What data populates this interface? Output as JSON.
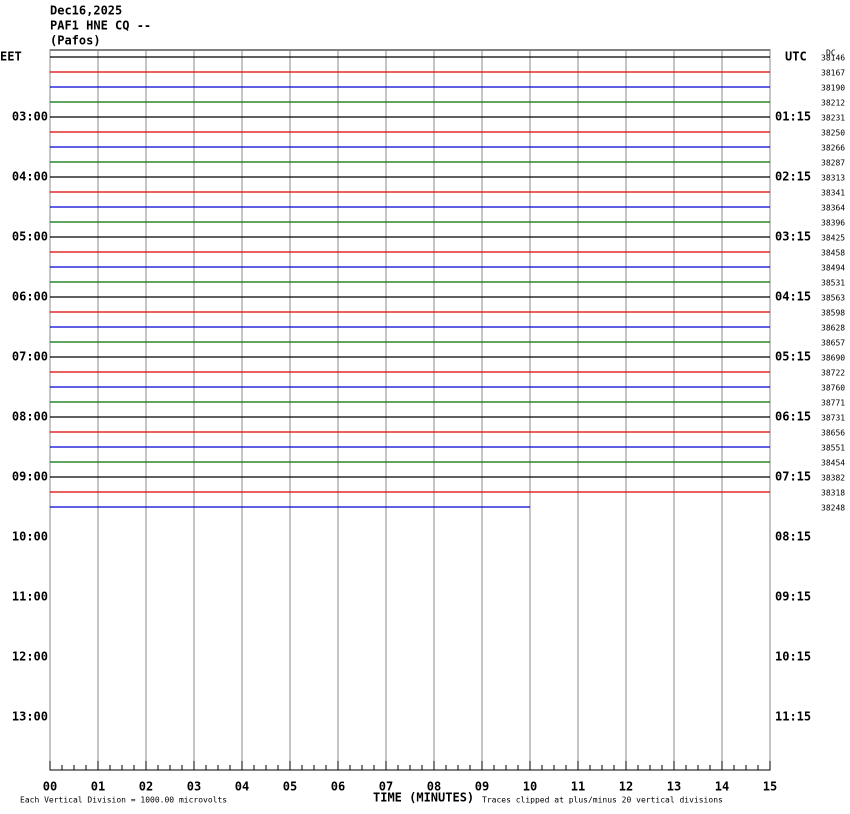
{
  "chart_data": {
    "type": "helicorder",
    "title": "Dec16,2025",
    "subtitle": "PAF1 HNE CQ --",
    "location": "(Pafos)",
    "left_axis_title": "EET",
    "right_axis_title": "UTC",
    "dc_title": "DC",
    "x_title": "TIME (MINUTES)",
    "scale_note": "Each Vertical Division = 1000.00 microvolts",
    "clip_note": "Traces clipped at plus/minus 20 vertical divisions",
    "xlim": [
      0,
      15
    ],
    "xticks": [
      {
        "value": 0,
        "label": "00"
      },
      {
        "value": 1,
        "label": "01"
      },
      {
        "value": 2,
        "label": "02"
      },
      {
        "value": 3,
        "label": "03"
      },
      {
        "value": 4,
        "label": "04"
      },
      {
        "value": 5,
        "label": "05"
      },
      {
        "value": 6,
        "label": "06"
      },
      {
        "value": 7,
        "label": "07"
      },
      {
        "value": 8,
        "label": "08"
      },
      {
        "value": 9,
        "label": "09"
      },
      {
        "value": 10,
        "label": "10"
      },
      {
        "value": 11,
        "label": "11"
      },
      {
        "value": 12,
        "label": "12"
      },
      {
        "value": 13,
        "label": "13"
      },
      {
        "value": 14,
        "label": "14"
      },
      {
        "value": 15,
        "label": "15"
      }
    ],
    "left_labels": [
      "03:00",
      "04:00",
      "05:00",
      "06:00",
      "07:00",
      "08:00",
      "09:00",
      "10:00",
      "11:00",
      "12:00",
      "13:00"
    ],
    "right_labels": [
      "01:15",
      "02:15",
      "03:15",
      "04:15",
      "05:15",
      "06:15",
      "07:15",
      "08:15",
      "09:15",
      "10:15",
      "11:15"
    ],
    "colors": [
      "#000000",
      "#e00000",
      "#0000d0",
      "#007000"
    ],
    "dc": [
      38146,
      38167,
      38190,
      38212,
      38231,
      38250,
      38266,
      38287,
      38313,
      38341,
      38364,
      38396,
      38425,
      38458,
      38494,
      38531,
      38563,
      38598,
      38628,
      38657,
      38690,
      38722,
      38760,
      38771,
      38731,
      38656,
      38551,
      38454,
      38382,
      38318,
      38248
    ],
    "last_trace_end": 10
  }
}
